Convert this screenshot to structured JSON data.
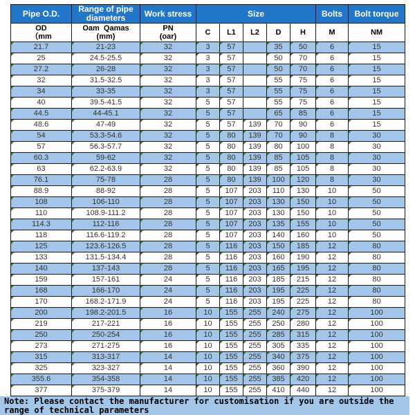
{
  "colors": {
    "header_bg": "#2277C8",
    "header_text": "#FFFFFF",
    "stripe": "#A3C5E8",
    "note_bg": "#A3C5E8",
    "border": "#151515",
    "triangle_green": "#2E7D32",
    "data_text": "#333333"
  },
  "table": {
    "header_groups": [
      "Pipe O.D.",
      "Range of pipe diameters",
      "Work stress",
      "Size",
      "Bolts",
      "Bolt torque"
    ],
    "subheaders": [
      "OD\n（mm",
      "Oam  Qamas\n(mm)",
      "PN\n(oar)",
      "C",
      "L1",
      "L2",
      "D",
      "H",
      "M",
      "NM"
    ],
    "rows": [
      [
        "21.7",
        "21-23",
        "32",
        "3",
        "57",
        "",
        "35",
        "50",
        "6",
        "15"
      ],
      [
        "25",
        "24.5-25.5",
        "32",
        "3",
        "57",
        "",
        "50",
        "70",
        "6",
        "15"
      ],
      [
        "27.2",
        "26-28",
        "32",
        "3",
        "57",
        "",
        "50",
        "70",
        "6",
        "15"
      ],
      [
        "32",
        "31.5-32.5",
        "32",
        "3",
        "57",
        "",
        "55",
        "75",
        "6",
        "15"
      ],
      [
        "34",
        "33-35",
        "32",
        "3",
        "57",
        "",
        "55",
        "75",
        "6",
        "15"
      ],
      [
        "40",
        "39.5-41.5",
        "32",
        "5",
        "57",
        "",
        "55",
        "75",
        "6",
        "15"
      ],
      [
        "44.5",
        "44-45.1",
        "32",
        "5",
        "57",
        "",
        "65",
        "85",
        "6",
        "15"
      ],
      [
        "48.6",
        "47-49",
        "32",
        "5",
        "57",
        "139",
        "70",
        "90",
        "6",
        "15"
      ],
      [
        "54",
        "53.3-54.6",
        "32",
        "5",
        "80",
        "139",
        "70",
        "90",
        "8",
        "30"
      ],
      [
        "57",
        "56.3-57.7",
        "32",
        "5",
        "80",
        "139",
        "80",
        "100",
        "8",
        "30"
      ],
      [
        "60.3",
        "59-62",
        "32",
        "5",
        "80",
        "139",
        "85",
        "105",
        "8",
        "30"
      ],
      [
        "63",
        "62.2-63.9",
        "32",
        "5",
        "80",
        "139",
        "85",
        "105",
        "8",
        "30"
      ],
      [
        "76.1",
        "75-78",
        "28",
        "5",
        "80",
        "139",
        "100",
        "120",
        "8",
        "30"
      ],
      [
        "88.9",
        "88-92",
        "28",
        "5",
        "107",
        "203",
        "110",
        "130",
        "10",
        "50"
      ],
      [
        "108",
        "106-110",
        "28",
        "5",
        "107",
        "203",
        "130",
        "150",
        "10",
        "50"
      ],
      [
        "110",
        "108.9-111.2",
        "28",
        "5",
        "107",
        "203",
        "130",
        "150",
        "10",
        "50"
      ],
      [
        "114.3",
        "112-116",
        "28",
        "5",
        "107",
        "203",
        "135",
        "155",
        "10",
        "50"
      ],
      [
        "118",
        "116.6-119.2",
        "28",
        "5",
        "107",
        "203",
        "140",
        "160",
        "10",
        "50"
      ],
      [
        "125",
        "123.6-126.5",
        "28",
        "5",
        "116",
        "203",
        "150",
        "185",
        "12",
        "80"
      ],
      [
        "133",
        "131.5-134.4",
        "28",
        "5",
        "116",
        "203",
        "160",
        "190",
        "12",
        "80"
      ],
      [
        "140",
        "137-143",
        "28",
        "5",
        "116",
        "203",
        "165",
        "195",
        "12",
        "80"
      ],
      [
        "159",
        "157-161",
        "24",
        "5",
        "116",
        "203",
        "185",
        "215",
        "12",
        "80"
      ],
      [
        "168",
        "166-170",
        "24",
        "5",
        "116",
        "203",
        "195",
        "225",
        "12",
        "80"
      ],
      [
        "170",
        "168.2-171.9",
        "24",
        "5",
        "116",
        "203",
        "195",
        "225",
        "12",
        "80"
      ],
      [
        "200",
        "198.2-201.5",
        "16",
        "10",
        "155",
        "255",
        "240",
        "275",
        "12",
        "100"
      ],
      [
        "219",
        "217-221",
        "16",
        "10",
        "155",
        "255",
        "250",
        "280",
        "12",
        "100"
      ],
      [
        "250",
        "250-254",
        "16",
        "10",
        "155",
        "255",
        "285",
        "315",
        "12",
        "100"
      ],
      [
        "273",
        "271-275",
        "16",
        "10",
        "155",
        "255",
        "305",
        "335",
        "12",
        "100"
      ],
      [
        "315",
        "313-317",
        "14",
        "10",
        "155",
        "255",
        "340",
        "375",
        "12",
        "100"
      ],
      [
        "325",
        "323-327",
        "14",
        "10",
        "155",
        "255",
        "360",
        "390",
        "12",
        "100"
      ],
      [
        "355.6",
        "354-358",
        "14",
        "10",
        "155",
        "255",
        "385",
        "420",
        "12",
        "100"
      ],
      [
        "377",
        "375-379",
        "14",
        "10",
        "155",
        "255",
        "410",
        "440",
        "12",
        "100"
      ]
    ]
  },
  "note": "Note: Please contact the manufacturer for customisation if you are outside the range of technical parameters"
}
